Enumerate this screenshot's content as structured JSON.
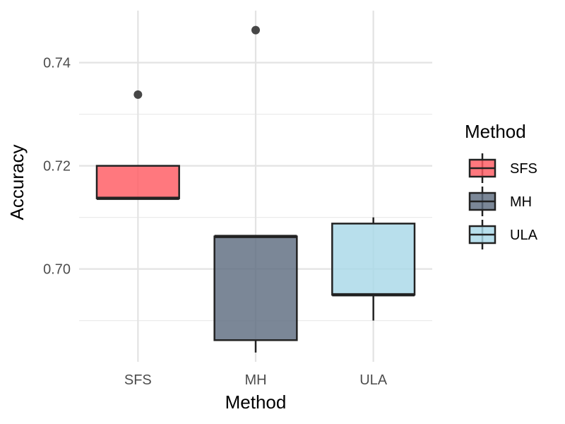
{
  "chart_data": {
    "type": "boxplot",
    "title": "",
    "xlabel": "Method",
    "ylabel": "Accuracy",
    "ylim": [
      0.682,
      0.7505
    ],
    "y_ticks": [
      0.7,
      0.72,
      0.74
    ],
    "y_tick_labels": [
      "0.70",
      "0.72",
      "0.74"
    ],
    "y_minor_ticks": [
      0.69,
      0.71,
      0.73
    ],
    "categories": [
      "SFS",
      "MH",
      "ULA"
    ],
    "series": [
      {
        "name": "SFS",
        "color": "#FF5A62",
        "q1": 0.7137,
        "median": 0.7137,
        "q3": 0.72,
        "whisker_low": 0.7137,
        "whisker_high": 0.72,
        "outliers": [
          0.7338
        ]
      },
      {
        "name": "MH",
        "color": "#5E6D80",
        "q1": 0.6862,
        "median": 0.7063,
        "q3": 0.7063,
        "whisker_low": 0.6838,
        "whisker_high": 0.7063,
        "outliers": [
          0.7463
        ]
      },
      {
        "name": "ULA",
        "color": "#A8D8E8",
        "q1": 0.695,
        "median": 0.695,
        "q3": 0.7088,
        "whisker_low": 0.69,
        "whisker_high": 0.71,
        "outliers": []
      }
    ],
    "legend": {
      "title": "Method",
      "position": "right",
      "entries": [
        "SFS",
        "MH",
        "ULA"
      ]
    },
    "grid": true
  }
}
